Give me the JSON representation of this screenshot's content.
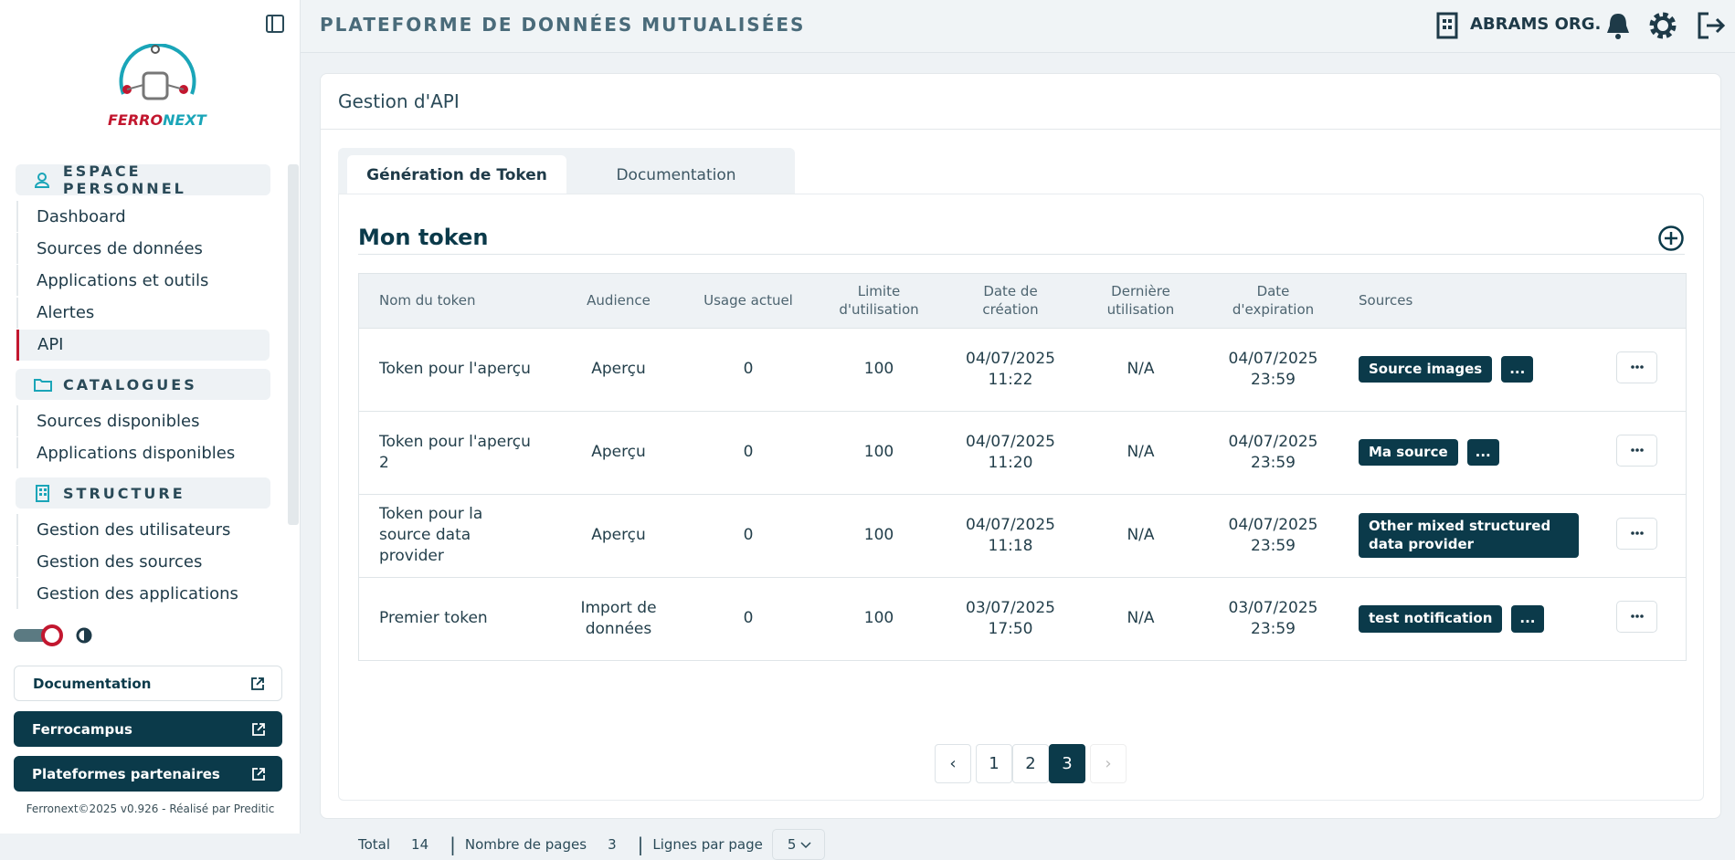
{
  "header": {
    "title": "PLATEFORME DE DONNÉES MUTUALISÉES",
    "org": "ABRAMS ORG."
  },
  "logo": {
    "left": "FERRO",
    "right": "NEXT"
  },
  "sidebar": {
    "sections": [
      {
        "title": "ESPACE PERSONNEL",
        "items": [
          "Dashboard",
          "Sources de données",
          "Applications et outils",
          "Alertes",
          "API"
        ]
      },
      {
        "title": "CATALOGUES",
        "items": [
          "Sources disponibles",
          "Applications disponibles"
        ]
      },
      {
        "title": "STRUCTURE",
        "items": [
          "Gestion des utilisateurs",
          "Gestion des sources",
          "Gestion des applications"
        ]
      }
    ],
    "links": [
      "Documentation",
      "Ferrocampus",
      "Plateformes partenaires"
    ],
    "footer": "Ferronext©2025 v0.926 - Réalisé par Preditic"
  },
  "card": {
    "title": "Gestion d'API",
    "tabs": [
      "Génération de Token",
      "Documentation"
    ],
    "section_title": "Mon token"
  },
  "table": {
    "columns": [
      "Nom du token",
      "Audience",
      "Usage actuel",
      "Limite d'utilisation",
      "Date de création",
      "Dernière utilisation",
      "Date d'expiration",
      "Sources"
    ],
    "rows": [
      {
        "cells": [
          "Token pour l'aperçu",
          "Aperçu",
          "0",
          "100",
          "04/07/2025 11:22",
          "N/A",
          "04/07/2025 23:59"
        ],
        "sources": [
          "Source images",
          "..."
        ]
      },
      {
        "cells": [
          "Token pour l'aperçu 2",
          "Aperçu",
          "0",
          "100",
          "04/07/2025 11:20",
          "N/A",
          "04/07/2025 23:59"
        ],
        "sources": [
          "Ma source",
          "..."
        ]
      },
      {
        "cells": [
          "Token pour la source data provider",
          "Aperçu",
          "0",
          "100",
          "04/07/2025 11:18",
          "N/A",
          "04/07/2025 23:59"
        ],
        "sources": [
          "Other mixed structured data provider"
        ]
      },
      {
        "cells": [
          "Premier token",
          "Import de données",
          "0",
          "100",
          "03/07/2025 17:50",
          "N/A",
          "03/07/2025 23:59"
        ],
        "sources": [
          "test notification",
          "..."
        ]
      }
    ]
  },
  "pagination": {
    "total_label": "Total",
    "total": "14",
    "pages_label": "Nombre de pages",
    "pages": "3",
    "rows_label": "Lignes par page",
    "rows_per_page": "5",
    "page_list": [
      "1",
      "2",
      "3"
    ],
    "current_page": 3
  }
}
